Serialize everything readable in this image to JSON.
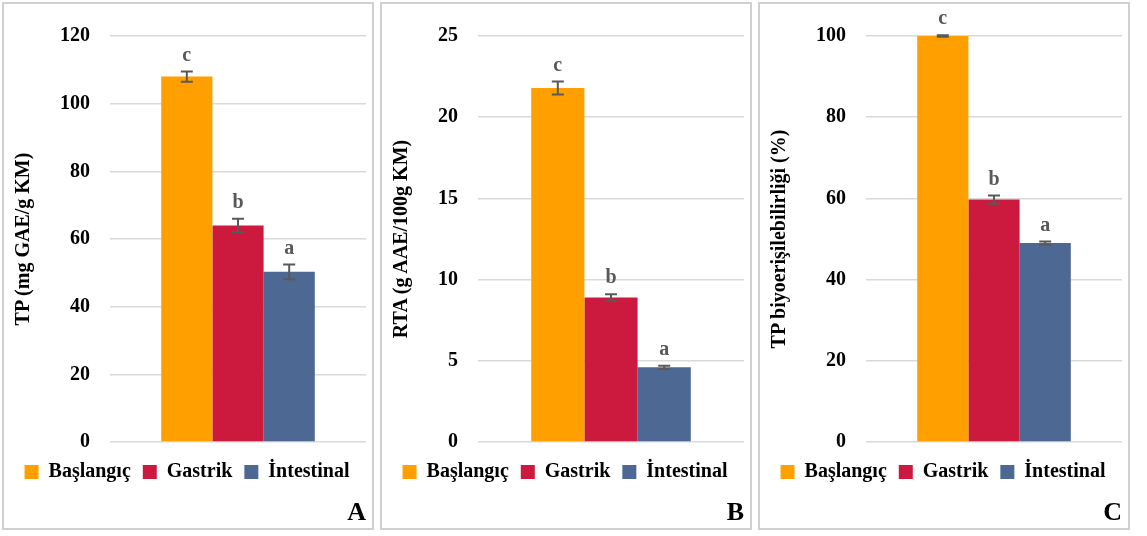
{
  "chart_data": [
    {
      "type": "bar",
      "ylabel": "TP (mg GAE/g KM)",
      "categories": [
        null
      ],
      "ylim": [
        0,
        120
      ],
      "yticks": [
        0,
        20,
        40,
        60,
        80,
        100,
        120
      ],
      "grid": "y",
      "legend": "bottom",
      "tick_labels": "y",
      "annotations": [
        "A"
      ],
      "series": [
        {
          "name": "Başlangıç",
          "color": "#ffa000",
          "values": [
            108
          ],
          "errors": [
            1.5
          ],
          "value_labels": [
            "c"
          ]
        },
        {
          "name": "Gastrik",
          "color": "#cc1a3f",
          "values": [
            64
          ],
          "errors": [
            2
          ],
          "value_labels": [
            "b"
          ]
        },
        {
          "name": "İntestinal",
          "color": "#4e6894",
          "values": [
            50.3
          ],
          "errors": [
            2.2
          ],
          "value_labels": [
            "a"
          ]
        }
      ]
    },
    {
      "type": "bar",
      "ylabel": "RTA (g AAE/100g KM)",
      "categories": [
        null
      ],
      "ylim": [
        0,
        25
      ],
      "yticks": [
        0,
        5,
        10,
        15,
        20,
        25
      ],
      "grid": "y",
      "legend": "bottom",
      "tick_labels": "y",
      "annotations": [
        "B"
      ],
      "series": [
        {
          "name": "Başlangıç",
          "color": "#ffa000",
          "values": [
            21.8
          ],
          "errors": [
            0.4
          ],
          "value_labels": [
            "c"
          ]
        },
        {
          "name": "Gastrik",
          "color": "#cc1a3f",
          "values": [
            8.9
          ],
          "errors": [
            0.2
          ],
          "value_labels": [
            "b"
          ]
        },
        {
          "name": "İntestinal",
          "color": "#4e6894",
          "values": [
            4.6
          ],
          "errors": [
            0.1
          ],
          "value_labels": [
            "a"
          ]
        }
      ]
    },
    {
      "type": "bar",
      "ylabel": "TP biyoerişilebilirliği (%)",
      "categories": [
        null
      ],
      "ylim": [
        0,
        100
      ],
      "yticks": [
        0,
        20,
        40,
        60,
        80,
        100
      ],
      "grid": "y",
      "legend": "bottom",
      "tick_labels": "y",
      "annotations": [
        "C"
      ],
      "series": [
        {
          "name": "Başlangıç",
          "color": "#ffa000",
          "values": [
            100
          ],
          "errors": [
            0.2
          ],
          "value_labels": [
            "c"
          ]
        },
        {
          "name": "Gastrik",
          "color": "#cc1a3f",
          "values": [
            59.7
          ],
          "errors": [
            1
          ],
          "value_labels": [
            "b"
          ]
        },
        {
          "name": "İntestinal",
          "color": "#4e6894",
          "values": [
            49
          ],
          "errors": [
            0.4
          ],
          "value_labels": [
            "a"
          ]
        }
      ]
    }
  ]
}
